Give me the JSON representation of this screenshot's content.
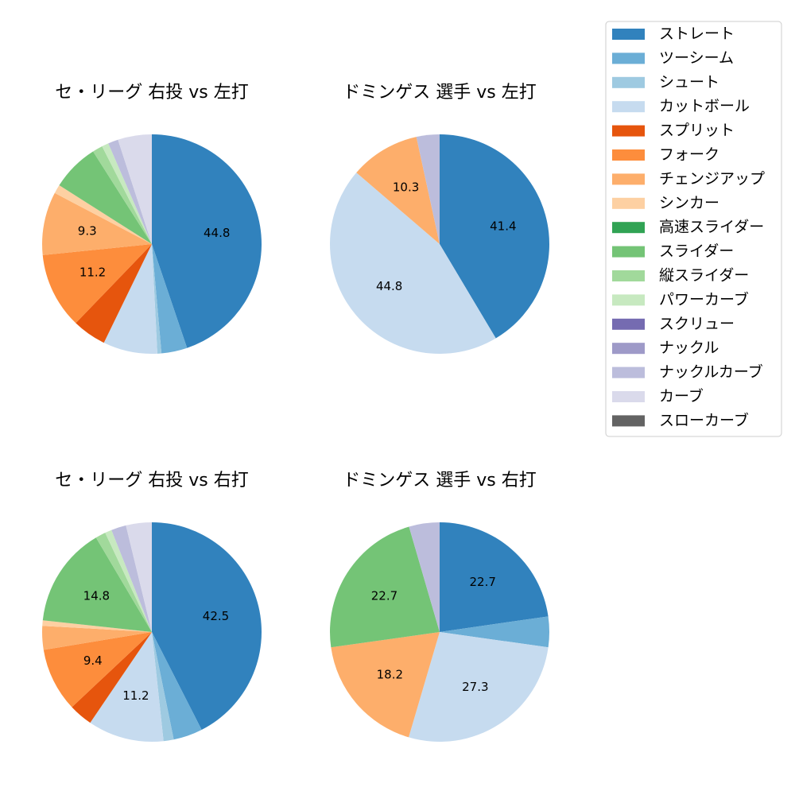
{
  "chart_data": [
    {
      "type": "pie",
      "title": "セ・リーグ 右投 vs 左打",
      "categories": [
        "ストレート",
        "ツーシーム",
        "シュート",
        "カットボール",
        "スプリット",
        "フォーク",
        "チェンジアップ",
        "シンカー",
        "高速スライダー",
        "スライダー",
        "縦スライダー",
        "パワーカーブ",
        "スクリュー",
        "ナックル",
        "ナックルカーブ",
        "カーブ",
        "スローカーブ"
      ],
      "colors": [
        "#3182bd",
        "#6baed6",
        "#9ecae1",
        "#c6dbef",
        "#e6550d",
        "#fd8d3c",
        "#fdae6b",
        "#fdd0a2",
        "#31a354",
        "#74c476",
        "#a1d99b",
        "#c7e9c0",
        "#756bb1",
        "#9e9ac8",
        "#bcbddc",
        "#dadaeb",
        "#636363"
      ],
      "values": [
        44.8,
        3.8,
        0.6,
        8,
        5,
        11.2,
        9.3,
        1.3,
        0,
        7,
        1.5,
        1,
        0,
        0,
        1.5,
        5,
        0
      ],
      "value_labels": [
        "44.8",
        null,
        null,
        null,
        null,
        "11.2",
        "9.3",
        null,
        null,
        null,
        null,
        null,
        null,
        null,
        null,
        null,
        null
      ]
    },
    {
      "type": "pie",
      "title": "ドミンゲス 選手 vs 左打",
      "categories": [
        "ストレート",
        "ツーシーム",
        "シュート",
        "カットボール",
        "スプリット",
        "フォーク",
        "チェンジアップ",
        "シンカー",
        "高速スライダー",
        "スライダー",
        "縦スライダー",
        "パワーカーブ",
        "スクリュー",
        "ナックル",
        "ナックルカーブ",
        "カーブ",
        "スローカーブ"
      ],
      "colors": [
        "#3182bd",
        "#6baed6",
        "#9ecae1",
        "#c6dbef",
        "#e6550d",
        "#fd8d3c",
        "#fdae6b",
        "#fdd0a2",
        "#31a354",
        "#74c476",
        "#a1d99b",
        "#c7e9c0",
        "#756bb1",
        "#9e9ac8",
        "#bcbddc",
        "#dadaeb",
        "#636363"
      ],
      "values": [
        41.4,
        0,
        0,
        44.8,
        0,
        0,
        10.3,
        0,
        0,
        0,
        0,
        0,
        0,
        0,
        3.4,
        0,
        0
      ],
      "value_labels": [
        "41.4",
        null,
        null,
        "44.8",
        null,
        null,
        "10.3",
        null,
        null,
        null,
        null,
        null,
        null,
        null,
        null,
        null,
        null
      ]
    },
    {
      "type": "pie",
      "title": "セ・リーグ 右投 vs 右打",
      "categories": [
        "ストレート",
        "ツーシーム",
        "シュート",
        "カットボール",
        "スプリット",
        "フォーク",
        "チェンジアップ",
        "シンカー",
        "高速スライダー",
        "スライダー",
        "縦スライダー",
        "パワーカーブ",
        "スクリュー",
        "ナックル",
        "ナックルカーブ",
        "カーブ",
        "スローカーブ"
      ],
      "colors": [
        "#3182bd",
        "#6baed6",
        "#9ecae1",
        "#c6dbef",
        "#e6550d",
        "#fd8d3c",
        "#fdae6b",
        "#fdd0a2",
        "#31a354",
        "#74c476",
        "#a1d99b",
        "#c7e9c0",
        "#756bb1",
        "#9e9ac8",
        "#bcbddc",
        "#dadaeb",
        "#636363"
      ],
      "values": [
        42.5,
        4.3,
        1.5,
        11.2,
        3.5,
        9.4,
        3.5,
        0.8,
        0,
        14.8,
        1.5,
        1,
        0,
        0,
        2.2,
        3.8,
        0
      ],
      "value_labels": [
        "42.5",
        null,
        null,
        "11.2",
        null,
        "9.4",
        null,
        null,
        null,
        "14.8",
        null,
        null,
        null,
        null,
        null,
        null,
        null
      ]
    },
    {
      "type": "pie",
      "title": "ドミンゲス 選手 vs 右打",
      "categories": [
        "ストレート",
        "ツーシーム",
        "シュート",
        "カットボール",
        "スプリット",
        "フォーク",
        "チェンジアップ",
        "シンカー",
        "高速スライダー",
        "スライダー",
        "縦スライダー",
        "パワーカーブ",
        "スクリュー",
        "ナックル",
        "ナックルカーブ",
        "カーブ",
        "スローカーブ"
      ],
      "colors": [
        "#3182bd",
        "#6baed6",
        "#9ecae1",
        "#c6dbef",
        "#e6550d",
        "#fd8d3c",
        "#fdae6b",
        "#fdd0a2",
        "#31a354",
        "#74c476",
        "#a1d99b",
        "#c7e9c0",
        "#756bb1",
        "#9e9ac8",
        "#bcbddc",
        "#dadaeb",
        "#636363"
      ],
      "values": [
        22.7,
        4.5,
        0,
        27.3,
        0,
        0,
        18.2,
        0,
        0,
        22.7,
        0,
        0,
        0,
        0,
        4.5,
        0,
        0
      ],
      "value_labels": [
        "22.7",
        null,
        null,
        "27.3",
        null,
        null,
        "18.2",
        null,
        null,
        "22.7",
        null,
        null,
        null,
        null,
        null,
        null,
        null
      ]
    }
  ]
}
